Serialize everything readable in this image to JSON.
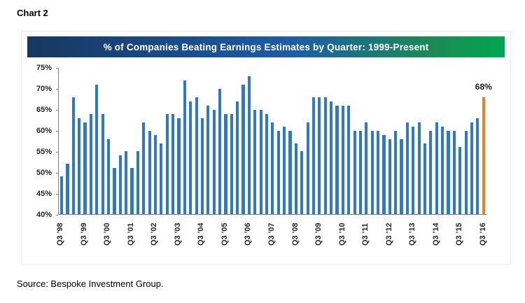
{
  "header": {
    "chart_label": "Chart 2"
  },
  "footer": {
    "source": "Source: Bespoke Investment Group."
  },
  "chart_data": {
    "type": "bar",
    "title": "% of Companies Beating Earnings Estimates by Quarter: 1999-Present",
    "xlabel": "",
    "ylabel": "",
    "ylim": [
      40,
      75
    ],
    "yticks": [
      40,
      45,
      50,
      55,
      60,
      65,
      70,
      75
    ],
    "ytick_suffix": "%",
    "grid": false,
    "legend": "none",
    "bar_color": "#2E79C0",
    "highlight_color": "#F47C20",
    "highlight_index": 72,
    "annotation": {
      "text": "68%",
      "value": 68
    },
    "xtick_every": 4,
    "xtick_labels": [
      "Q3 '98",
      "Q3 '99",
      "Q3 '00",
      "Q3 '01",
      "Q3 '02",
      "Q3 '03",
      "Q3 '04",
      "Q3 '05",
      "Q3 '06",
      "Q3 '07",
      "Q3 '08",
      "Q3 '09",
      "Q3 '10",
      "Q3 '11",
      "Q3 '12",
      "Q3 '13",
      "Q3 '14",
      "Q3 '15",
      "Q3 '16"
    ],
    "categories": [
      "Q3 '98",
      "Q4 '98",
      "Q1 '99",
      "Q2 '99",
      "Q3 '99",
      "Q4 '99",
      "Q1 '00",
      "Q2 '00",
      "Q3 '00",
      "Q4 '00",
      "Q1 '01",
      "Q2 '01",
      "Q3 '01",
      "Q4 '01",
      "Q1 '02",
      "Q2 '02",
      "Q3 '02",
      "Q4 '02",
      "Q1 '03",
      "Q2 '03",
      "Q3 '03",
      "Q4 '03",
      "Q1 '04",
      "Q2 '04",
      "Q3 '04",
      "Q4 '04",
      "Q1 '05",
      "Q2 '05",
      "Q3 '05",
      "Q4 '05",
      "Q1 '06",
      "Q2 '06",
      "Q3 '06",
      "Q4 '06",
      "Q1 '07",
      "Q2 '07",
      "Q3 '07",
      "Q4 '07",
      "Q1 '08",
      "Q2 '08",
      "Q3 '08",
      "Q4 '08",
      "Q1 '09",
      "Q2 '09",
      "Q3 '09",
      "Q4 '09",
      "Q1 '10",
      "Q2 '10",
      "Q3 '10",
      "Q4 '10",
      "Q1 '11",
      "Q2 '11",
      "Q3 '11",
      "Q4 '11",
      "Q1 '12",
      "Q2 '12",
      "Q3 '12",
      "Q4 '12",
      "Q1 '13",
      "Q2 '13",
      "Q3 '13",
      "Q4 '13",
      "Q1 '14",
      "Q2 '14",
      "Q3 '14",
      "Q4 '14",
      "Q1 '15",
      "Q2 '15",
      "Q3 '15",
      "Q4 '15",
      "Q1 '16",
      "Q2 '16",
      "Q3 '16"
    ],
    "values": [
      49,
      52,
      68,
      63,
      62,
      64,
      71,
      64,
      58,
      51,
      54,
      55,
      51,
      55,
      62,
      60,
      59,
      57,
      64,
      64,
      63,
      72,
      67,
      68,
      63,
      66,
      65,
      70,
      64,
      64,
      67,
      71,
      73,
      65,
      65,
      64,
      62,
      60,
      61,
      60,
      57,
      55,
      62,
      68,
      68,
      68,
      67,
      66,
      66,
      66,
      60,
      60,
      62,
      60,
      60,
      59,
      58,
      60,
      58,
      62,
      61,
      62,
      57,
      60,
      62,
      61,
      60,
      60,
      56,
      60,
      62,
      63,
      68
    ]
  }
}
